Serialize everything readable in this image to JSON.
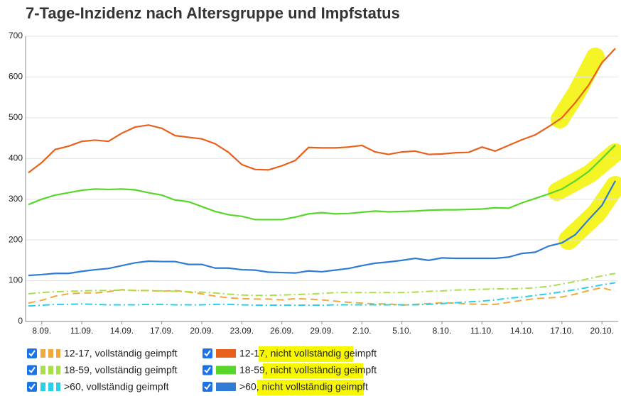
{
  "chart_data": {
    "type": "line",
    "title": "7-Tage-Inzidenz nach Altersgruppe und Impfstatus",
    "categories": [
      null,
      "8.09.",
      null,
      null,
      "11.09.",
      null,
      null,
      "14.09.",
      null,
      null,
      "17.09.",
      null,
      null,
      "20.09.",
      null,
      null,
      "23.09.",
      null,
      null,
      "26.09.",
      null,
      null,
      "29.09.",
      null,
      null,
      "2.10.",
      null,
      null,
      "5.10.",
      null,
      null,
      "8.10.",
      null,
      null,
      "11.10.",
      null,
      null,
      "14.10.",
      null,
      null,
      "17.10.",
      null,
      null,
      "20.10.",
      null
    ],
    "ylim": [
      0,
      700
    ],
    "yticks": [
      0,
      100,
      200,
      300,
      400,
      500,
      600,
      700
    ],
    "grid": true,
    "series": [
      {
        "name": "12-17, vollständig geimpft",
        "color": "#f2a93b",
        "style": "dashed",
        "values": [
          45,
          52,
          62,
          68,
          70,
          70,
          73,
          78,
          76,
          76,
          74,
          76,
          72,
          68,
          62,
          58,
          56,
          55,
          55,
          53,
          56,
          55,
          53,
          50,
          47,
          45,
          43,
          43,
          40,
          42,
          44,
          46,
          45,
          43,
          42,
          42,
          47,
          52,
          56,
          58,
          60,
          67,
          76,
          83,
          74
        ]
      },
      {
        "name": "18-59, vollständig geimpft",
        "color": "#a8e04a",
        "style": "dashdot",
        "values": [
          68,
          71,
          73,
          74,
          75,
          76,
          76,
          77,
          76,
          76,
          75,
          74,
          73,
          72,
          70,
          67,
          65,
          64,
          64,
          65,
          66,
          67,
          69,
          71,
          71,
          71,
          71,
          71,
          71,
          72,
          74,
          75,
          77,
          78,
          79,
          80,
          80,
          81,
          83,
          86,
          92,
          98,
          105,
          112,
          118
        ]
      },
      {
        "name": ">60, vollständig geimpft",
        "color": "#2ad0e8",
        "style": "dashdot",
        "values": [
          38,
          40,
          42,
          42,
          43,
          42,
          41,
          41,
          41,
          42,
          42,
          41,
          41,
          41,
          42,
          42,
          41,
          40,
          40,
          40,
          40,
          40,
          40,
          41,
          41,
          41,
          41,
          41,
          41,
          41,
          42,
          44,
          46,
          48,
          50,
          53,
          57,
          60,
          64,
          68,
          73,
          78,
          84,
          90,
          95
        ]
      },
      {
        "name": "12-17, nicht vollständig geimpft",
        "color": "#e8601c",
        "style": "solid",
        "values": [
          365,
          390,
          422,
          430,
          442,
          445,
          442,
          462,
          477,
          482,
          474,
          456,
          452,
          448,
          436,
          415,
          385,
          373,
          372,
          382,
          395,
          427,
          426,
          426,
          428,
          432,
          416,
          410,
          416,
          418,
          410,
          411,
          414,
          415,
          428,
          418,
          432,
          446,
          458,
          478,
          500,
          537,
          580,
          635,
          670
        ]
      },
      {
        "name": "18-59, nicht vollständig geimpft",
        "color": "#58d62a",
        "style": "solid",
        "values": [
          287,
          300,
          310,
          316,
          322,
          325,
          324,
          325,
          323,
          316,
          310,
          298,
          294,
          282,
          270,
          262,
          258,
          250,
          250,
          250,
          256,
          264,
          267,
          264,
          265,
          268,
          271,
          269,
          270,
          271,
          273,
          274,
          274,
          275,
          276,
          279,
          278,
          291,
          302,
          313,
          325,
          345,
          368,
          400,
          433
        ]
      },
      {
        "name": ">60, nicht vollständig geimpft",
        "color": "#2f7bd6",
        "style": "solid",
        "values": [
          113,
          115,
          118,
          118,
          123,
          127,
          130,
          137,
          144,
          148,
          147,
          147,
          140,
          140,
          131,
          131,
          127,
          126,
          121,
          120,
          119,
          124,
          122,
          126,
          130,
          137,
          143,
          146,
          150,
          155,
          150,
          156,
          155,
          155,
          155,
          155,
          158,
          167,
          170,
          185,
          193,
          213,
          250,
          285,
          345
        ]
      }
    ]
  }
}
